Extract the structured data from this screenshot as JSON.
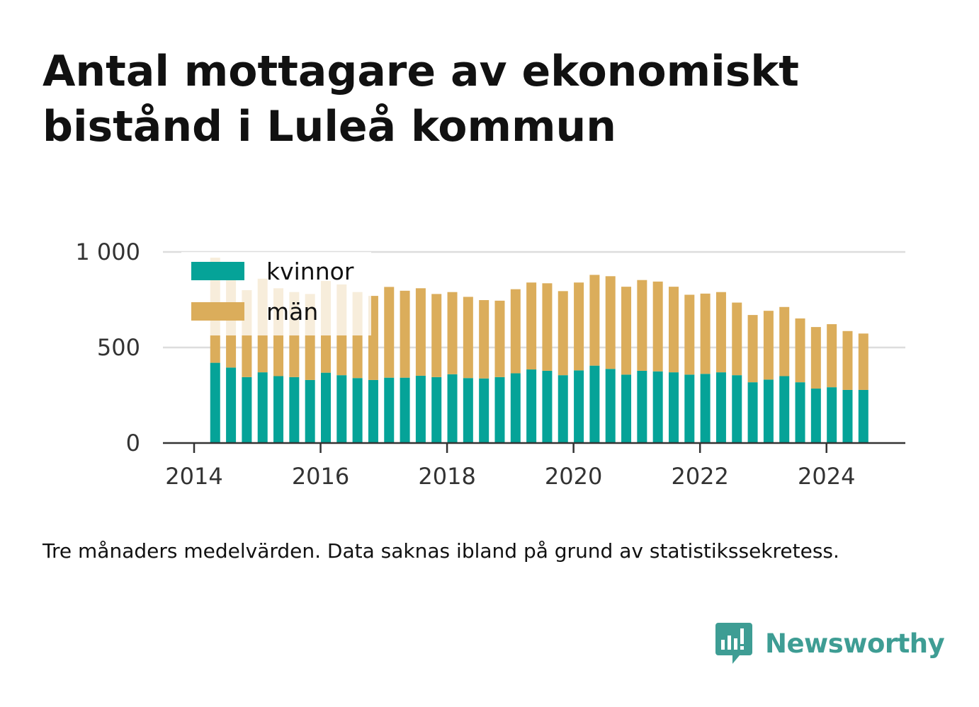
{
  "title": "Antal mottagare av ekonomiskt bistånd i Luleå kommun",
  "note": "Tre månaders medelvärden. Data saknas ibland på grund av statistikssekretess.",
  "brand": {
    "name": "Newsworthy",
    "logo_icon": "bar-chart-speech-bubble-icon",
    "color": "#3e9d94"
  },
  "chart_data": {
    "type": "bar",
    "stacked": true,
    "x": [
      "2014-05",
      "2014-08",
      "2014-11",
      "2015-02",
      "2015-05",
      "2015-08",
      "2015-11",
      "2016-02",
      "2016-05",
      "2016-08",
      "2016-11",
      "2017-02",
      "2017-05",
      "2017-08",
      "2017-11",
      "2018-02",
      "2018-05",
      "2018-08",
      "2018-11",
      "2019-02",
      "2019-05",
      "2019-08",
      "2019-11",
      "2020-02",
      "2020-05",
      "2020-08",
      "2020-11",
      "2021-02",
      "2021-05",
      "2021-08",
      "2021-11",
      "2022-02",
      "2022-05",
      "2022-08",
      "2022-11",
      "2023-02",
      "2023-05",
      "2023-08",
      "2023-11",
      "2024-02",
      "2024-05",
      "2024-08"
    ],
    "series": [
      {
        "name": "kvinnor",
        "color": "#05a398",
        "values": [
          420,
          395,
          345,
          370,
          350,
          345,
          330,
          368,
          355,
          340,
          330,
          342,
          342,
          352,
          345,
          360,
          340,
          338,
          345,
          365,
          385,
          378,
          355,
          380,
          405,
          388,
          358,
          378,
          375,
          370,
          358,
          362,
          370,
          355,
          318,
          332,
          350,
          318,
          285,
          292,
          278,
          278
        ]
      },
      {
        "name": "män",
        "color": "#dbad5b",
        "values": [
          550,
          520,
          455,
          490,
          460,
          445,
          450,
          480,
          475,
          450,
          440,
          475,
          455,
          458,
          435,
          430,
          425,
          410,
          400,
          440,
          455,
          458,
          440,
          460,
          475,
          485,
          460,
          475,
          470,
          448,
          418,
          420,
          420,
          380,
          352,
          360,
          362,
          334,
          322,
          330,
          308,
          295
        ]
      }
    ],
    "x_ticks": [
      "2014",
      "2016",
      "2018",
      "2020",
      "2022",
      "2024"
    ],
    "y_ticks": [
      "0",
      "500",
      "1 000"
    ],
    "ylim": [
      0,
      1000
    ],
    "xlim": [
      "2014-01",
      "2025-01"
    ],
    "grid": true,
    "legend": {
      "position": "top-left",
      "entries": [
        "kvinnor",
        "män"
      ]
    }
  }
}
